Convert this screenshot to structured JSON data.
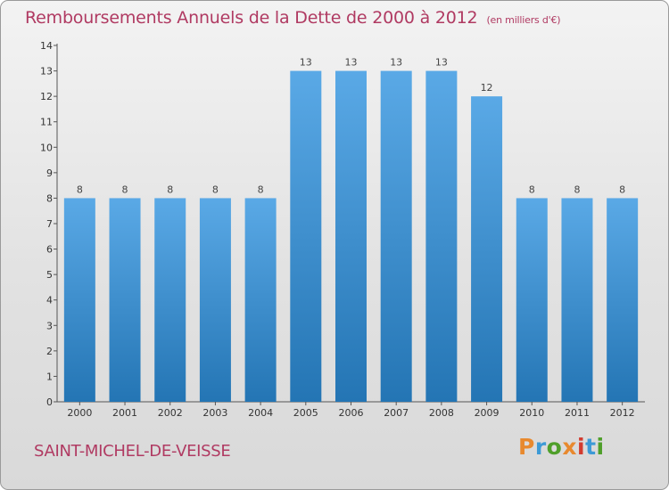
{
  "title": "Remboursements Annuels de la Dette de 2000 à 2012",
  "unit_note": "(en milliers d'€)",
  "location": "SAINT-MICHEL-DE-VEISSE",
  "logo": {
    "text": "Proxiti",
    "colors": [
      "#e8892e",
      "#3d9ad6",
      "#4f9f2a",
      "#e8892e",
      "#d23b2f",
      "#3d9ad6",
      "#4f9f2a"
    ]
  },
  "colors": {
    "title": "#b03a62",
    "bar_light": "#5aa9e6",
    "bar_dark": "#2475b4"
  },
  "chart_data": {
    "type": "bar",
    "title": "Remboursements Annuels de la Dette de 2000 à 2012",
    "categories": [
      "2000",
      "2001",
      "2002",
      "2003",
      "2004",
      "2005",
      "2006",
      "2007",
      "2008",
      "2009",
      "2010",
      "2011",
      "2012"
    ],
    "values": [
      8,
      8,
      8,
      8,
      8,
      13,
      13,
      13,
      13,
      12,
      8,
      8,
      8
    ],
    "data_labels": [
      "8",
      "8",
      "8",
      "8",
      "8",
      "13",
      "13",
      "13",
      "13",
      "12",
      "8",
      "8",
      "8"
    ],
    "ylim": [
      0,
      14
    ],
    "y_ticks": [
      "0",
      "1",
      "2",
      "3",
      "4",
      "5",
      "6",
      "7",
      "8",
      "9",
      "10",
      "11",
      "12",
      "13",
      "14"
    ],
    "xlabel": "",
    "ylabel": "",
    "grid": false,
    "legend": "none"
  }
}
